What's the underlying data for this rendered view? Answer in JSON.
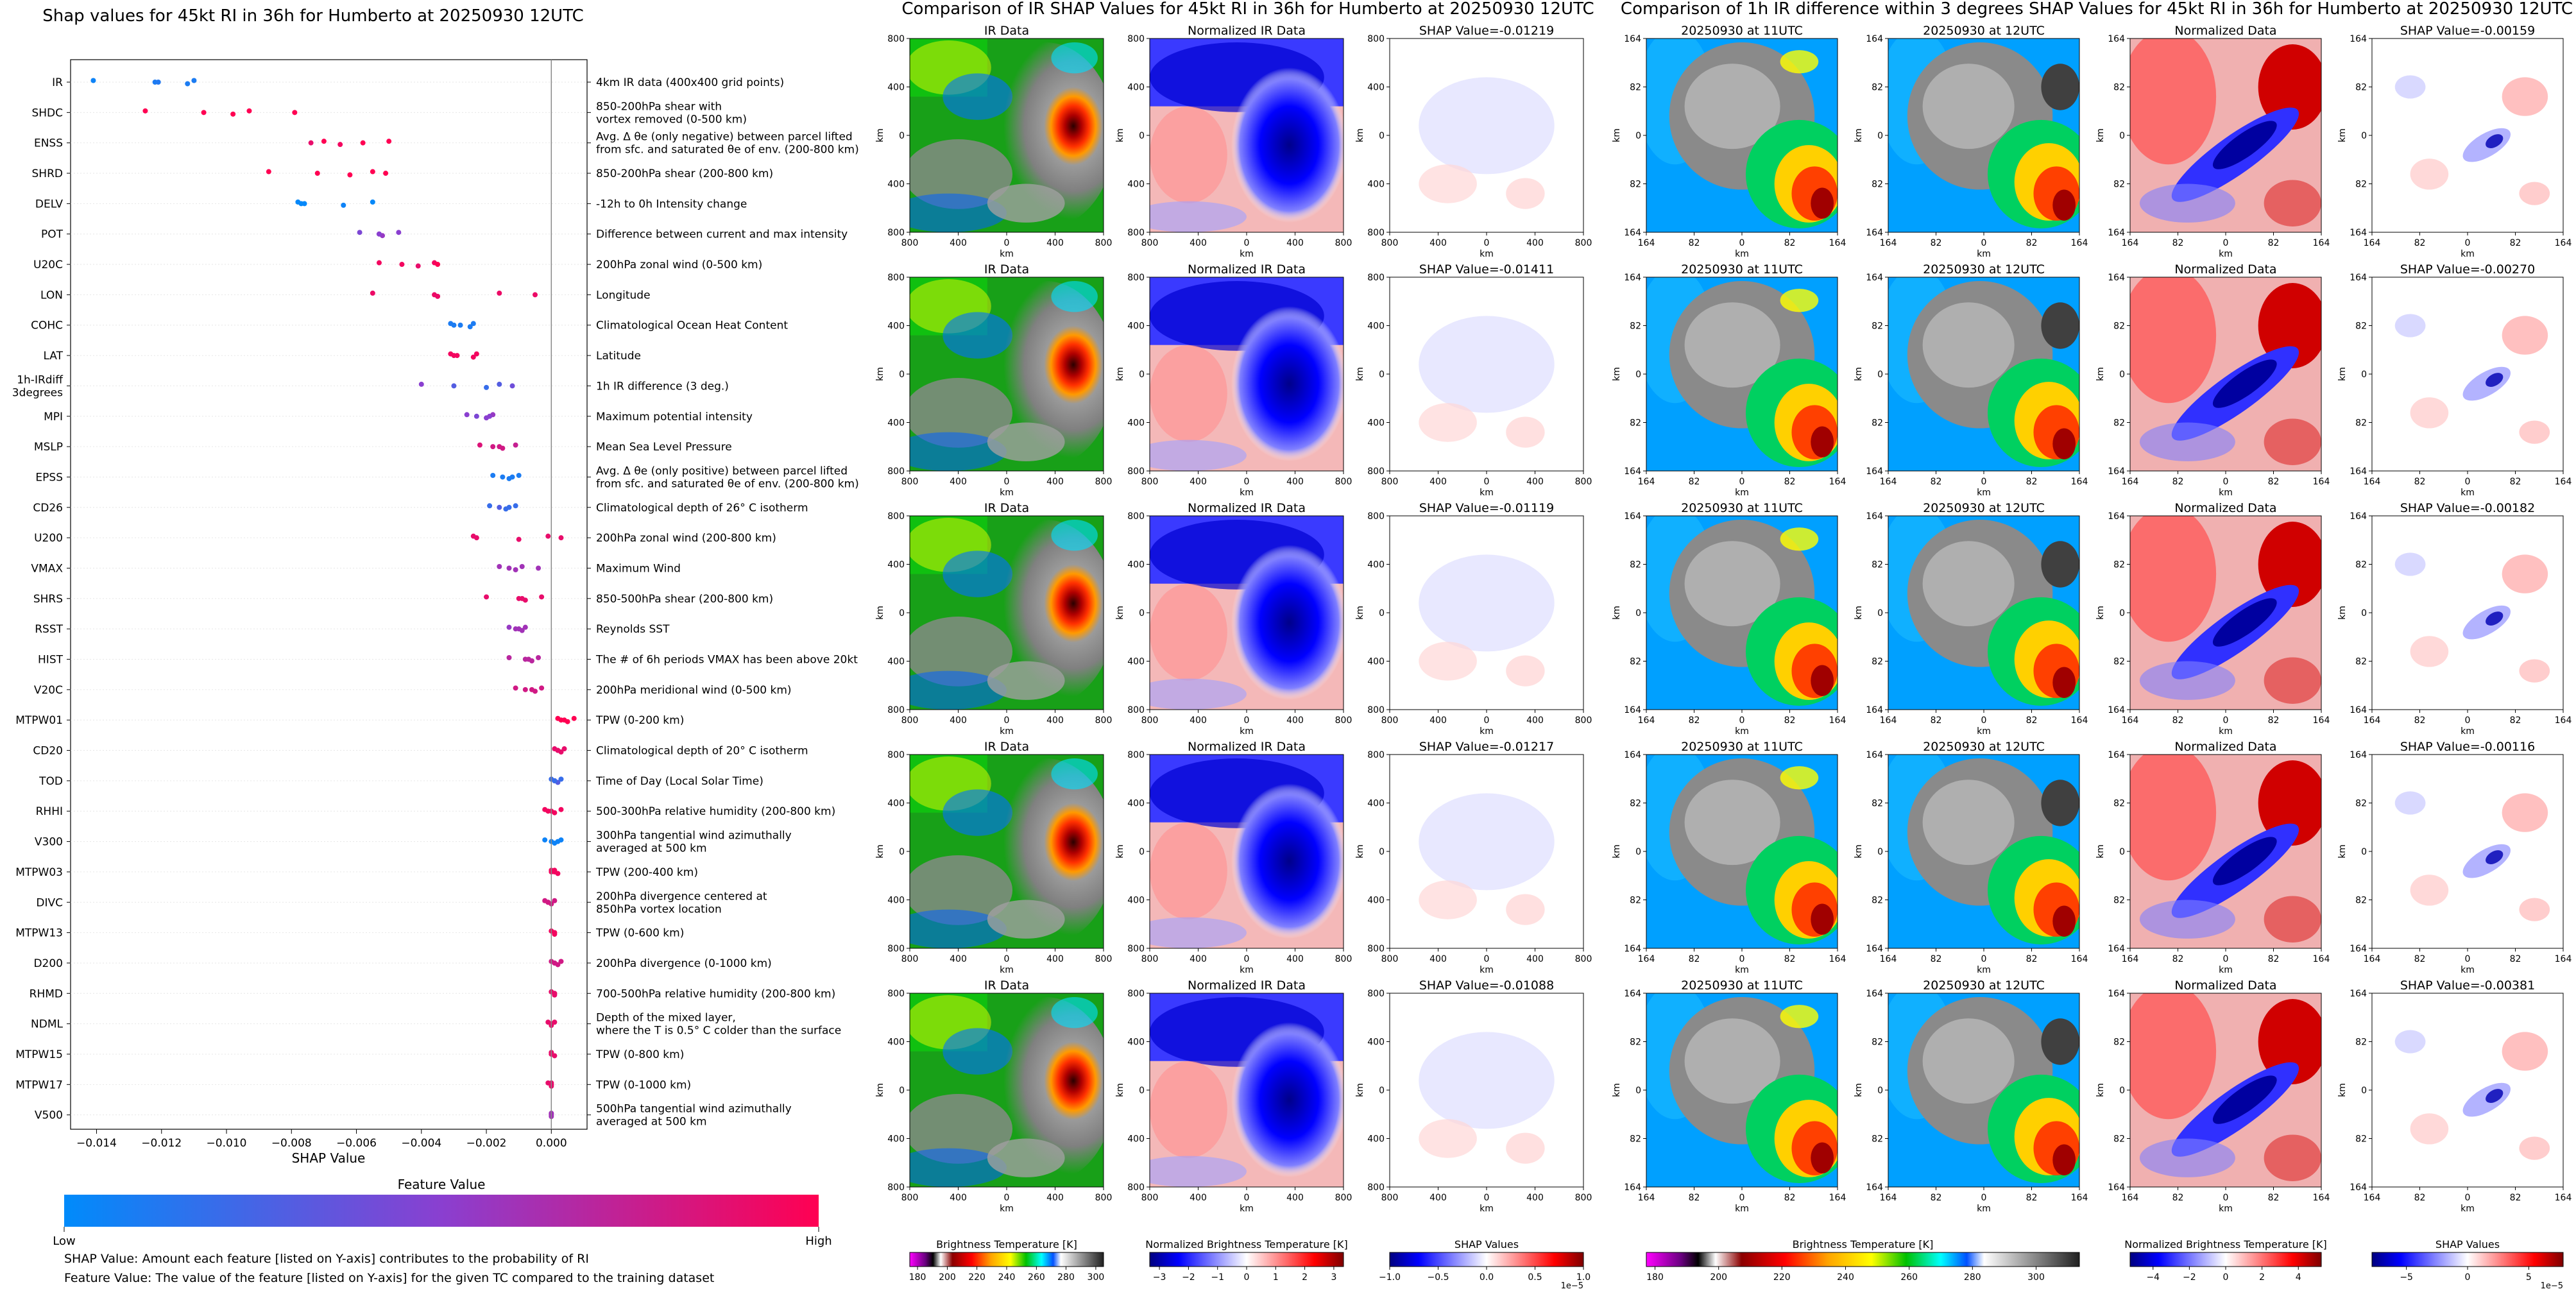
{
  "left_panel": {
    "title": "Shap values for 45kt RI in 36h for Humberto at 20250930 12UTC",
    "xlabel": "SHAP Value",
    "colorbar_title": "Feature Value",
    "colorbar_low": "Low",
    "colorbar_high": "High",
    "note1": "SHAP Value: Amount each feature [listed on Y-axis] contributes to the probability of RI",
    "note2": "Feature Value: The value of the feature [listed on Y-axis] for the given TC compared to the training dataset"
  },
  "middle_panel": {
    "title": "Comparison of IR SHAP Values for 45kt RI in 36h for Humberto at 20250930 12UTC",
    "col_titles": [
      "IR Data",
      "Normalized IR Data"
    ],
    "shap_titles": [
      "SHAP Value=-0.01219",
      "SHAP Value=-0.01411",
      "SHAP Value=-0.01119",
      "SHAP Value=-0.01217",
      "SHAP Value=-0.01088"
    ],
    "axis_unit": "km",
    "ticks": [
      "800",
      "400",
      "0",
      "400",
      "800"
    ],
    "cbar1_label": "Brightness Temperature [K]",
    "cbar1_ticks": [
      "180",
      "200",
      "220",
      "240",
      "260",
      "280",
      "300"
    ],
    "cbar2_label": "Normalized Brightness Temperature [K]",
    "cbar2_ticks": [
      "−3",
      "−2",
      "−1",
      "0",
      "1",
      "2",
      "3"
    ],
    "cbar3_label": "SHAP Values",
    "cbar3_ticks": [
      "−1.0",
      "−0.5",
      "0.0",
      "0.5",
      "1.0"
    ],
    "cbar3_exp": "1e−5"
  },
  "right_panel": {
    "title": "Comparison of 1h IR difference within 3 degrees SHAP Values for 45kt RI in 36h for Humberto at 20250930 12UTC",
    "col_titles": [
      "20250930 at 11UTC",
      "20250930 at 12UTC",
      "Normalized Data"
    ],
    "shap_titles": [
      "SHAP Value=-0.00159",
      "SHAP Value=-0.00270",
      "SHAP Value=-0.00182",
      "SHAP Value=-0.00116",
      "SHAP Value=-0.00381"
    ],
    "axis_unit": "km",
    "ticks": [
      "164",
      "82",
      "0",
      "82",
      "164"
    ],
    "cbar1_label": "Brightness Temperature [K]",
    "cbar1_ticks": [
      "180",
      "200",
      "220",
      "240",
      "260",
      "280",
      "300"
    ],
    "cbar2_label": "Normalized Brightness Temperature [K]",
    "cbar2_ticks": [
      "−4",
      "−2",
      "0",
      "2",
      "4"
    ],
    "cbar3_label": "SHAP Values",
    "cbar3_ticks": [
      "−5",
      "0",
      "5"
    ],
    "cbar3_exp": "1e−5"
  },
  "colors": {
    "low": "#008bfb",
    "mid": "#8a3fd0",
    "high": "#ff0052"
  },
  "chart_data": {
    "type": "scatter",
    "xlabel": "SHAP Value",
    "xlim": [
      -0.0148,
      0.0011
    ],
    "xticks": [
      -0.014,
      -0.012,
      -0.01,
      -0.008,
      -0.006,
      -0.004,
      -0.002,
      0.0
    ],
    "xtick_labels": [
      "−0.014",
      "−0.012",
      "−0.010",
      "−0.008",
      "−0.006",
      "−0.004",
      "−0.002",
      "0.000"
    ],
    "features": [
      {
        "name": "IR",
        "desc": "4km IR data (400x400 grid points)",
        "points": [
          [
            -0.0141,
            0.05
          ],
          [
            -0.0122,
            0.1
          ],
          [
            -0.0112,
            0.1
          ],
          [
            -0.011,
            0.1
          ],
          [
            -0.0121,
            0.12
          ]
        ]
      },
      {
        "name": "SHDC",
        "desc": "850-200hPa shear with\nvortex removed (0-500 km)",
        "points": [
          [
            -0.0125,
            1.0
          ],
          [
            -0.0107,
            1.0
          ],
          [
            -0.0098,
            1.0
          ],
          [
            -0.0093,
            1.0
          ],
          [
            -0.0079,
            1.0
          ]
        ]
      },
      {
        "name": "ENSS",
        "desc": "Avg. Δ θe (only negative) between parcel lifted\nfrom sfc. and saturated θe of env. (200-800 km)",
        "points": [
          [
            -0.005,
            1.0
          ],
          [
            -0.0074,
            0.9
          ],
          [
            -0.0065,
            0.95
          ],
          [
            -0.007,
            1.0
          ],
          [
            -0.0058,
            1.0
          ]
        ]
      },
      {
        "name": "SHRD",
        "desc": "850-200hPa shear (200-800 km)",
        "points": [
          [
            -0.0087,
            1.0
          ],
          [
            -0.0072,
            1.0
          ],
          [
            -0.0062,
            1.0
          ],
          [
            -0.0055,
            1.0
          ],
          [
            -0.0051,
            1.0
          ]
        ]
      },
      {
        "name": "DELV",
        "desc": "-12h to 0h Intensity change",
        "points": [
          [
            -0.0078,
            0.02
          ],
          [
            -0.0077,
            0.02
          ],
          [
            -0.0064,
            0.05
          ],
          [
            -0.0055,
            0.02
          ],
          [
            -0.0076,
            0.02
          ]
        ]
      },
      {
        "name": "POT",
        "desc": "Difference between current and max intensity",
        "points": [
          [
            -0.0059,
            0.45
          ],
          [
            -0.0053,
            0.5
          ],
          [
            -0.0052,
            0.55
          ],
          [
            -0.0047,
            0.5
          ],
          [
            -0.0053,
            0.5
          ]
        ]
      },
      {
        "name": "U20C",
        "desc": "200hPa zonal wind (0-500 km)",
        "points": [
          [
            -0.0053,
            0.95
          ],
          [
            -0.0046,
            0.95
          ],
          [
            -0.0041,
            0.9
          ],
          [
            -0.0036,
            0.95
          ],
          [
            -0.0035,
            1.0
          ]
        ]
      },
      {
        "name": "LON",
        "desc": "Longitude",
        "points": [
          [
            -0.0055,
            0.92
          ],
          [
            -0.0036,
            0.92
          ],
          [
            -0.0035,
            0.92
          ],
          [
            -0.0016,
            0.92
          ],
          [
            -0.0005,
            0.92
          ]
        ]
      },
      {
        "name": "COHC",
        "desc": "Climatological Ocean Heat Content",
        "points": [
          [
            -0.0031,
            0.1
          ],
          [
            -0.0028,
            0.1
          ],
          [
            -0.0025,
            0.1
          ],
          [
            -0.0024,
            0.1
          ],
          [
            -0.003,
            0.1
          ]
        ]
      },
      {
        "name": "LAT",
        "desc": "Latitude",
        "points": [
          [
            -0.0031,
            0.95
          ],
          [
            -0.0029,
            0.95
          ],
          [
            -0.0024,
            0.95
          ],
          [
            -0.0023,
            0.95
          ],
          [
            -0.003,
            0.95
          ]
        ]
      },
      {
        "name": "1h-IRdiff\n3degrees",
        "desc": "1h IR difference (3 deg.)",
        "points": [
          [
            -0.004,
            0.5
          ],
          [
            -0.003,
            0.3
          ],
          [
            -0.002,
            0.2
          ],
          [
            -0.0016,
            0.3
          ],
          [
            -0.0012,
            0.4
          ]
        ]
      },
      {
        "name": "MPI",
        "desc": "Maximum potential intensity",
        "points": [
          [
            -0.0026,
            0.5
          ],
          [
            -0.0023,
            0.45
          ],
          [
            -0.002,
            0.5
          ],
          [
            -0.0018,
            0.55
          ],
          [
            -0.0019,
            0.5
          ]
        ]
      },
      {
        "name": "MSLP",
        "desc": "Mean Sea Level Pressure",
        "points": [
          [
            -0.0022,
            0.85
          ],
          [
            -0.0018,
            0.8
          ],
          [
            -0.0015,
            0.8
          ],
          [
            -0.0011,
            0.75
          ],
          [
            -0.0016,
            0.8
          ]
        ]
      },
      {
        "name": "EPSS",
        "desc": "Avg. Δ θe (only positive) between parcel lifted\nfrom sfc. and saturated θe of env. (200-800 km)",
        "points": [
          [
            -0.0018,
            0.1
          ],
          [
            -0.0015,
            0.1
          ],
          [
            -0.0013,
            0.1
          ],
          [
            -0.001,
            0.1
          ],
          [
            -0.0012,
            0.1
          ]
        ]
      },
      {
        "name": "CD26",
        "desc": "Climatological depth of 26° C isotherm",
        "points": [
          [
            -0.0019,
            0.2
          ],
          [
            -0.0016,
            0.3
          ],
          [
            -0.0014,
            0.2
          ],
          [
            -0.0011,
            0.2
          ],
          [
            -0.0013,
            0.2
          ]
        ]
      },
      {
        "name": "U200",
        "desc": "200hPa zonal wind (200-800 km)",
        "points": [
          [
            -0.0024,
            0.9
          ],
          [
            -0.0023,
            0.9
          ],
          [
            -0.001,
            0.9
          ],
          [
            -0.0001,
            0.9
          ],
          [
            0.0003,
            0.9
          ]
        ]
      },
      {
        "name": "VMAX",
        "desc": "Maximum Wind",
        "points": [
          [
            -0.0016,
            0.6
          ],
          [
            -0.0013,
            0.6
          ],
          [
            -0.0011,
            0.6
          ],
          [
            -0.0009,
            0.6
          ],
          [
            -0.0004,
            0.6
          ]
        ]
      },
      {
        "name": "SHRS",
        "desc": "850-500hPa shear (200-800 km)",
        "points": [
          [
            -0.002,
            0.9
          ],
          [
            -0.001,
            0.9
          ],
          [
            -0.0008,
            0.9
          ],
          [
            -0.0003,
            0.9
          ],
          [
            -0.0009,
            0.9
          ]
        ]
      },
      {
        "name": "RSST",
        "desc": "Reynolds SST",
        "points": [
          [
            -0.0013,
            0.55
          ],
          [
            -0.0011,
            0.6
          ],
          [
            -0.0009,
            0.6
          ],
          [
            -0.0008,
            0.6
          ],
          [
            -0.001,
            0.6
          ]
        ]
      },
      {
        "name": "HIST",
        "desc": "The # of 6h periods VMAX has been above 20kt",
        "points": [
          [
            -0.0013,
            0.7
          ],
          [
            -0.0008,
            0.7
          ],
          [
            -0.0006,
            0.7
          ],
          [
            -0.0004,
            0.7
          ],
          [
            -0.0007,
            0.7
          ]
        ]
      },
      {
        "name": "V20C",
        "desc": "200hPa meridional wind (0-500 km)",
        "points": [
          [
            -0.0011,
            0.8
          ],
          [
            -0.0008,
            0.8
          ],
          [
            -0.0005,
            0.8
          ],
          [
            -0.0003,
            0.8
          ],
          [
            -0.0006,
            0.8
          ]
        ]
      },
      {
        "name": "MTPW01",
        "desc": "TPW (0-200 km)",
        "points": [
          [
            0.0002,
            1.0
          ],
          [
            0.0003,
            1.0
          ],
          [
            0.0005,
            1.0
          ],
          [
            0.0007,
            1.0
          ],
          [
            0.0004,
            1.0
          ]
        ]
      },
      {
        "name": "CD20",
        "desc": "Climatological depth of 20° C isotherm",
        "points": [
          [
            0.0001,
            0.9
          ],
          [
            0.0002,
            0.9
          ],
          [
            0.0003,
            0.9
          ],
          [
            0.0004,
            0.9
          ],
          [
            0.0002,
            0.9
          ]
        ]
      },
      {
        "name": "TOD",
        "desc": "Time of Day (Local Solar Time)",
        "points": [
          [
            0.0,
            0.2
          ],
          [
            0.0001,
            0.5
          ],
          [
            0.0002,
            0.3
          ],
          [
            0.0003,
            0.2
          ],
          [
            0.0001,
            0.2
          ]
        ]
      },
      {
        "name": "RHHI",
        "desc": "500-300hPa relative humidity (200-800 km)",
        "points": [
          [
            -0.0002,
            0.95
          ],
          [
            -0.0001,
            0.95
          ],
          [
            0.0001,
            0.95
          ],
          [
            0.0003,
            0.95
          ],
          [
            0.0,
            0.95
          ]
        ]
      },
      {
        "name": "V300",
        "desc": "300hPa tangential wind azimuthally\naveraged at 500 km",
        "points": [
          [
            -0.0002,
            0.05
          ],
          [
            0.0,
            0.05
          ],
          [
            0.0001,
            0.05
          ],
          [
            0.0003,
            0.05
          ],
          [
            0.0002,
            0.05
          ]
        ]
      },
      {
        "name": "MTPW03",
        "desc": "TPW (200-400 km)",
        "points": [
          [
            0.0,
            0.95
          ],
          [
            0.0001,
            0.95
          ],
          [
            0.0002,
            0.95
          ],
          [
            0.0001,
            0.95
          ],
          [
            0.0,
            0.95
          ]
        ]
      },
      {
        "name": "DIVC",
        "desc": "200hPa divergence centered at\n850hPa vortex location",
        "points": [
          [
            -0.0002,
            0.8
          ],
          [
            -0.0001,
            0.85
          ],
          [
            0.0,
            0.8
          ],
          [
            0.0001,
            0.8
          ],
          [
            -0.0001,
            0.8
          ]
        ]
      },
      {
        "name": "MTPW13",
        "desc": "TPW (0-600 km)",
        "points": [
          [
            0.0,
            0.95
          ],
          [
            0.0001,
            0.95
          ],
          [
            0.0001,
            0.95
          ],
          [
            0.0,
            0.95
          ],
          [
            0.0001,
            0.95
          ]
        ]
      },
      {
        "name": "D200",
        "desc": "200hPa divergence (0-1000 km)",
        "points": [
          [
            0.0,
            0.8
          ],
          [
            0.0001,
            0.8
          ],
          [
            0.0002,
            0.8
          ],
          [
            0.0003,
            0.8
          ],
          [
            0.0001,
            0.8
          ]
        ]
      },
      {
        "name": "RHMD",
        "desc": "700-500hPa relative humidity (200-800 km)",
        "points": [
          [
            0.0,
            0.9
          ],
          [
            0.0001,
            0.9
          ],
          [
            0.0001,
            0.9
          ],
          [
            0.0,
            0.9
          ],
          [
            0.0001,
            0.9
          ]
        ]
      },
      {
        "name": "NDML",
        "desc": "Depth of the mixed layer,\nwhere the T is 0.5° C colder than the surface",
        "points": [
          [
            -0.0001,
            0.9
          ],
          [
            0.0,
            0.9
          ],
          [
            0.0,
            0.9
          ],
          [
            0.0001,
            0.9
          ],
          [
            0.0,
            0.9
          ]
        ]
      },
      {
        "name": "MTPW15",
        "desc": "TPW (0-800 km)",
        "points": [
          [
            0.0,
            0.9
          ],
          [
            0.0,
            0.9
          ],
          [
            0.0001,
            0.9
          ],
          [
            0.0,
            0.9
          ],
          [
            0.0,
            0.9
          ]
        ]
      },
      {
        "name": "MTPW17",
        "desc": "TPW (0-1000 km)",
        "points": [
          [
            -0.0001,
            0.9
          ],
          [
            0.0,
            0.9
          ],
          [
            0.0,
            0.9
          ],
          [
            0.0,
            0.9
          ],
          [
            0.0,
            0.9
          ]
        ]
      },
      {
        "name": "V500",
        "desc": "500hPa tangential wind azimuthally\naveraged at 500 km",
        "points": [
          [
            0.0,
            0.6
          ],
          [
            0.0,
            0.6
          ],
          [
            0.0,
            0.6
          ],
          [
            0.0,
            0.6
          ],
          [
            0.0,
            0.6
          ]
        ]
      }
    ]
  }
}
